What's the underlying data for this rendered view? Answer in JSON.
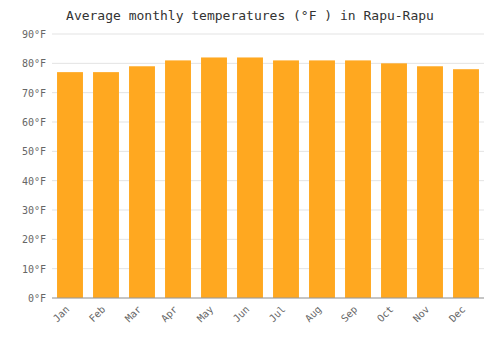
{
  "chart_data": {
    "type": "bar",
    "title": "Average monthly temperatures (°F ) in Rapu-Rapu",
    "categories": [
      "Jan",
      "Feb",
      "Mar",
      "Apr",
      "May",
      "Jun",
      "Jul",
      "Aug",
      "Sep",
      "Oct",
      "Nov",
      "Dec"
    ],
    "values": [
      77,
      77,
      79,
      81,
      82,
      82,
      81,
      81,
      81,
      80,
      79,
      78
    ],
    "color": "#FFA820",
    "ylim": [
      0,
      90
    ],
    "yticks": [
      {
        "value": 0,
        "label": "0°F"
      },
      {
        "value": 10,
        "label": "10°F"
      },
      {
        "value": 20,
        "label": "20°F"
      },
      {
        "value": 30,
        "label": "30°F"
      },
      {
        "value": 40,
        "label": "40°F"
      },
      {
        "value": 50,
        "label": "50°F"
      },
      {
        "value": 60,
        "label": "60°F"
      },
      {
        "value": 70,
        "label": "70°F"
      },
      {
        "value": 80,
        "label": "80°F"
      },
      {
        "value": 90,
        "label": "90°F"
      }
    ],
    "grid": true
  }
}
